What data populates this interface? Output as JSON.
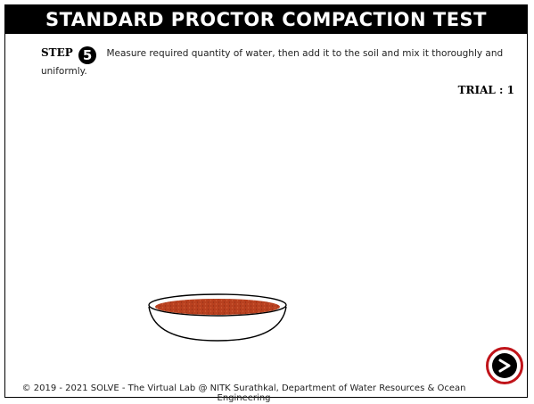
{
  "header": {
    "title": "STANDARD PROCTOR COMPACTION TEST"
  },
  "step": {
    "label": "STEP",
    "number": "5",
    "instruction": "Measure required quantity of water, then add it to the soil and mix it thoroughly and uniformly."
  },
  "trial": {
    "text": "TRIAL : 1"
  },
  "colors": {
    "soil": "#b8401f",
    "next_border": "#c0141a"
  },
  "footer": {
    "text": "© 2019 - 2021 SOLVE - The Virtual Lab @ NITK Surathkal, Department of Water Resources & Ocean Engineering"
  },
  "next_button": {
    "icon": "chevron-right-icon"
  }
}
